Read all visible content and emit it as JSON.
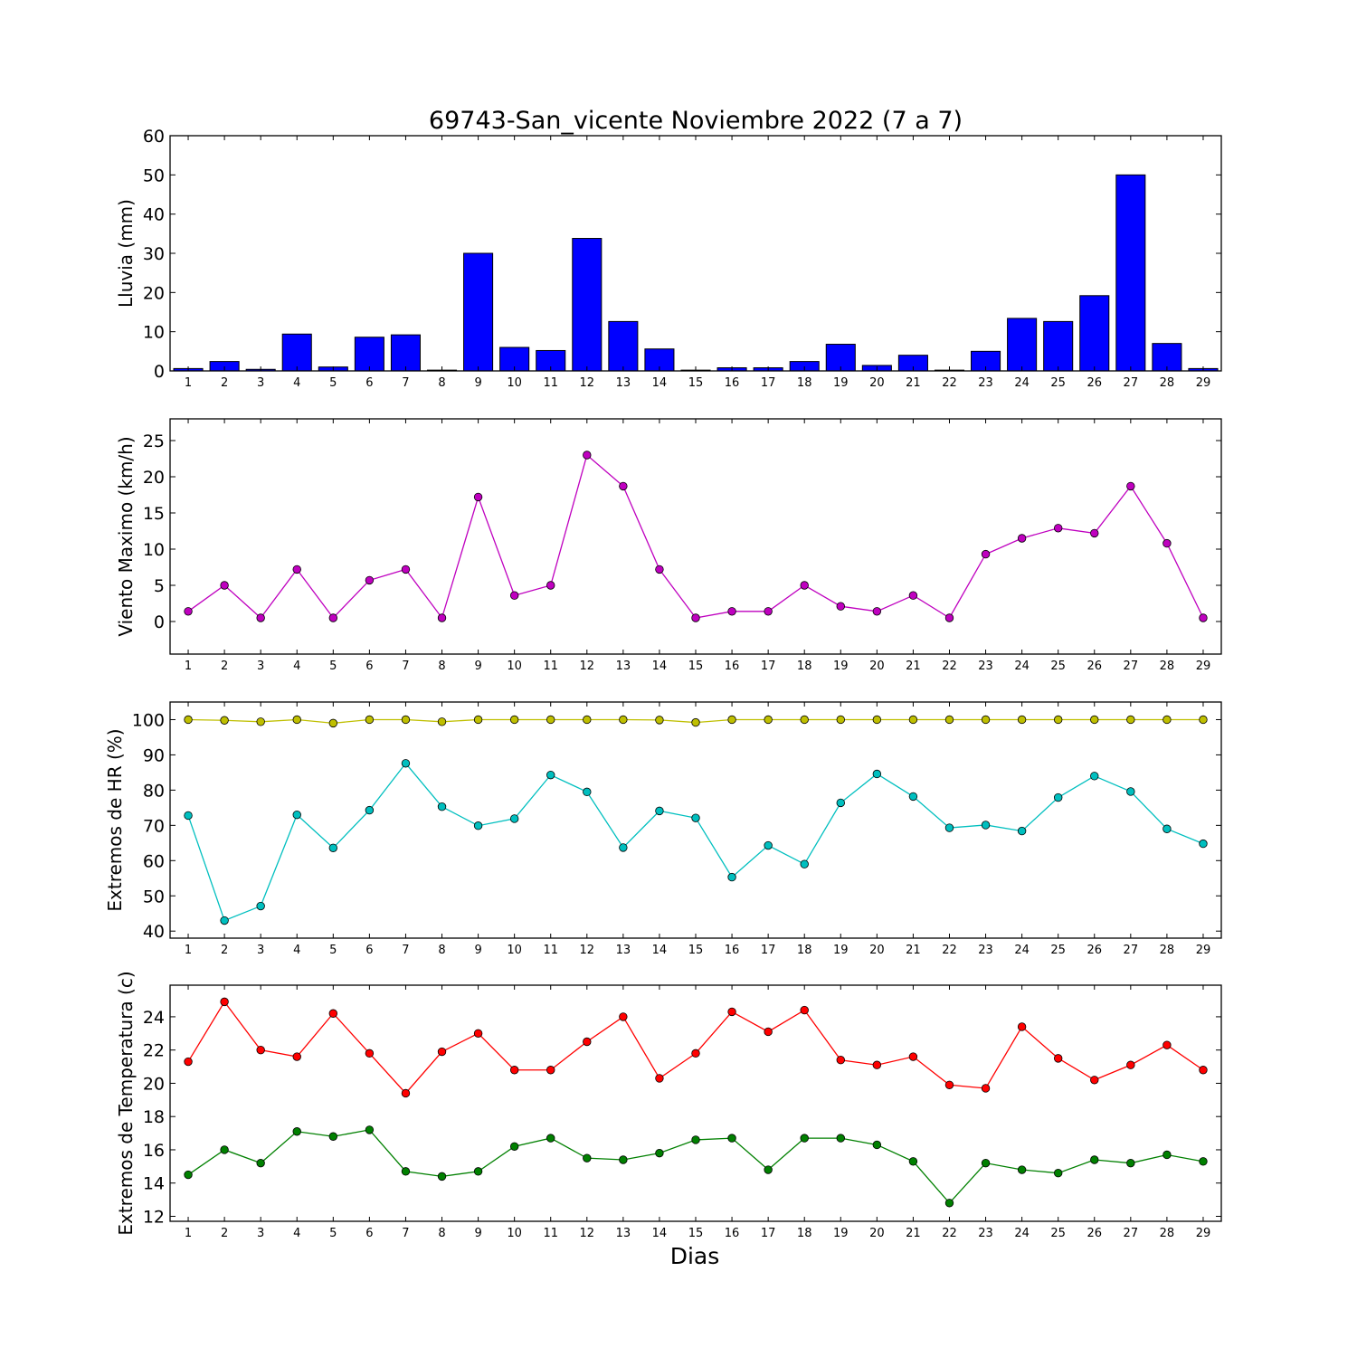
{
  "figure": {
    "title": "69743-San_vicente Noviembre 2022  (7 a 7)",
    "xlabel": "Dias"
  },
  "chart_data": [
    {
      "type": "bar",
      "ylabel": "Lluvia (mm)",
      "ylim": [
        0,
        60
      ],
      "yticks": [
        0,
        10,
        20,
        30,
        40,
        50,
        60
      ],
      "color": "#0000ff",
      "categories": [
        1,
        2,
        3,
        4,
        5,
        6,
        7,
        8,
        9,
        10,
        11,
        12,
        13,
        14,
        15,
        16,
        17,
        18,
        19,
        20,
        21,
        22,
        23,
        24,
        25,
        26,
        27,
        28,
        29
      ],
      "values": [
        0.6,
        2.4,
        0.4,
        9.4,
        1.0,
        8.6,
        9.2,
        0.2,
        30.0,
        6.0,
        5.2,
        33.8,
        12.6,
        5.6,
        0.2,
        0.8,
        0.8,
        2.4,
        6.8,
        1.4,
        4.0,
        0.2,
        5.0,
        13.4,
        12.6,
        19.2,
        50.0,
        7.0,
        0.6
      ]
    },
    {
      "type": "line",
      "ylabel": "Viento Maximo (km/h)",
      "ylim": [
        -4.5,
        28
      ],
      "yticks": [
        0,
        5,
        10,
        15,
        20,
        25
      ],
      "x": [
        1,
        2,
        3,
        4,
        5,
        6,
        7,
        8,
        9,
        10,
        11,
        12,
        13,
        14,
        15,
        16,
        17,
        18,
        19,
        20,
        21,
        22,
        23,
        24,
        25,
        26,
        27,
        28,
        29
      ],
      "series": [
        {
          "color": "#bf00bf",
          "values": [
            1.4,
            5.0,
            0.5,
            7.2,
            0.5,
            5.7,
            7.2,
            0.5,
            17.2,
            3.6,
            5.0,
            23.0,
            18.7,
            7.2,
            0.5,
            1.4,
            1.4,
            5.0,
            2.1,
            1.4,
            3.6,
            0.5,
            9.3,
            11.5,
            12.9,
            12.2,
            18.7,
            10.8,
            0.5
          ]
        }
      ]
    },
    {
      "type": "line",
      "ylabel": "Extremos de HR (%)",
      "ylim": [
        38,
        105
      ],
      "yticks": [
        40,
        50,
        60,
        70,
        80,
        90,
        100
      ],
      "x": [
        1,
        2,
        3,
        4,
        5,
        6,
        7,
        8,
        9,
        10,
        11,
        12,
        13,
        14,
        15,
        16,
        17,
        18,
        19,
        20,
        21,
        22,
        23,
        24,
        25,
        26,
        27,
        28,
        29
      ],
      "series": [
        {
          "color": "#bfbf00",
          "values": [
            100,
            99.8,
            99.4,
            100,
            99,
            100,
            100,
            99.4,
            100,
            100,
            100,
            100,
            100,
            99.9,
            99.2,
            100,
            100,
            100,
            100,
            100,
            100,
            100,
            100,
            100,
            100,
            100,
            100,
            100,
            100
          ]
        },
        {
          "color": "#00bfbf",
          "values": [
            72.8,
            43,
            47.1,
            73,
            63.6,
            74.3,
            87.6,
            75.3,
            69.9,
            71.9,
            84.3,
            79.5,
            63.7,
            74.1,
            72.1,
            55.3,
            64.3,
            59,
            76.4,
            84.6,
            78.2,
            69.3,
            70.1,
            68.4,
            77.9,
            84,
            79.6,
            69,
            64.8
          ]
        }
      ]
    },
    {
      "type": "line",
      "ylabel": "Extremos de Temperatura (c)",
      "ylim": [
        11.7,
        25.9
      ],
      "yticks": [
        12,
        14,
        16,
        18,
        20,
        22,
        24
      ],
      "x": [
        1,
        2,
        3,
        4,
        5,
        6,
        7,
        8,
        9,
        10,
        11,
        12,
        13,
        14,
        15,
        16,
        17,
        18,
        19,
        20,
        21,
        22,
        23,
        24,
        25,
        26,
        27,
        28,
        29
      ],
      "series": [
        {
          "color": "#ff0000",
          "values": [
            21.3,
            24.9,
            22,
            21.6,
            24.2,
            21.8,
            19.4,
            21.9,
            23,
            20.8,
            20.8,
            22.5,
            24,
            20.3,
            21.8,
            24.3,
            23.1,
            24.4,
            21.4,
            21.1,
            21.6,
            19.9,
            19.7,
            23.4,
            21.5,
            20.2,
            21.1,
            22.3,
            20.8
          ]
        },
        {
          "color": "#008000",
          "values": [
            14.5,
            16,
            15.2,
            17.1,
            16.8,
            17.2,
            14.7,
            14.4,
            14.7,
            16.2,
            16.7,
            15.5,
            15.4,
            15.8,
            16.6,
            16.7,
            14.8,
            16.7,
            16.7,
            16.3,
            15.3,
            12.8,
            15.2,
            14.8,
            14.6,
            15.4,
            15.2,
            15.7,
            15.3
          ]
        }
      ]
    }
  ]
}
